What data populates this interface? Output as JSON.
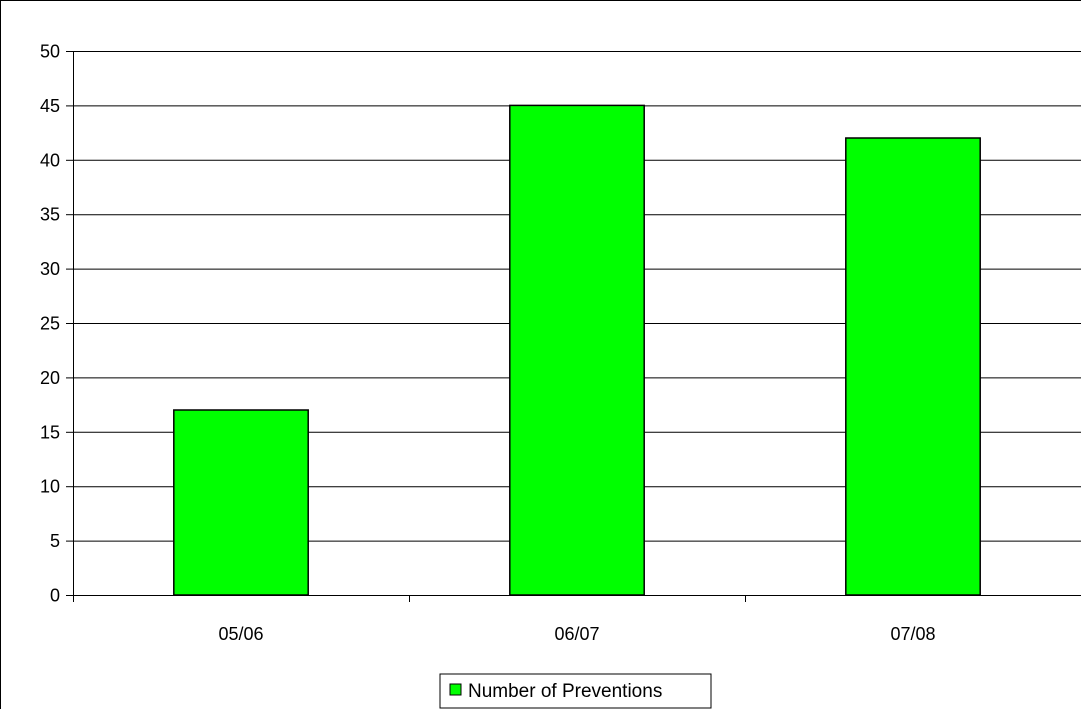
{
  "chart_data": {
    "type": "bar",
    "categories": [
      "05/06",
      "06/07",
      "07/08"
    ],
    "series": [
      {
        "name": "Number of Preventions",
        "values": [
          17,
          45,
          42
        ],
        "color": "#00ff00"
      }
    ],
    "ylim": [
      0,
      50
    ],
    "y_ticks": [
      0,
      5,
      10,
      15,
      20,
      25,
      30,
      35,
      40,
      45,
      50
    ],
    "grid": true,
    "legend": {
      "placement": "bottom",
      "label": "Number of Preventions"
    },
    "title": "",
    "xlabel": "",
    "ylabel": "",
    "colors": {
      "bar_fill": "#00ff00",
      "bar_stroke": "#000000",
      "gridline": "#000000",
      "axis": "#000000",
      "background": "#ffffff"
    }
  }
}
